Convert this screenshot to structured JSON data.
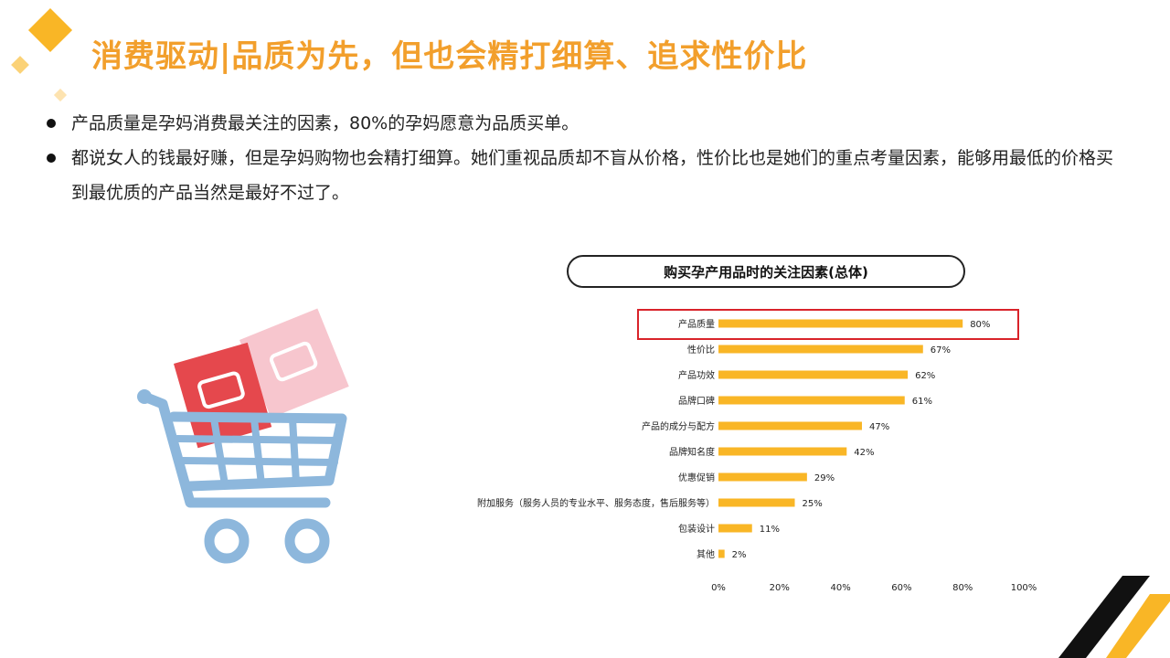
{
  "slide": {
    "title": "消费驱动|品质为先，但也会精打细算、追求性价比",
    "bullets": [
      "产品质量是孕妈消费最关注的因素，80%的孕妈愿意为品质买单。",
      "都说女人的钱最好赚，但是孕妈购物也会精打细算。她们重视品质却不盲从价格，性价比也是她们的重点考量因素，能够用最低的价格买到最优质的产品当然是最好不过了。"
    ]
  },
  "colors": {
    "accent": "#f29f2c",
    "bar": "#f9b626",
    "highlight": "#d9232a",
    "cart": "#8db7dc"
  },
  "chart_data": {
    "type": "bar",
    "orientation": "horizontal",
    "title": "购买孕产用品时的关注因素(总体)",
    "categories": [
      "产品质量",
      "性价比",
      "产品功效",
      "品牌口碑",
      "产品的成分与配方",
      "品牌知名度",
      "优惠促销",
      "附加服务（服务人员的专业水平、服务态度，售后服务等）",
      "包装设计",
      "其他"
    ],
    "values": [
      80,
      67,
      62,
      61,
      47,
      42,
      29,
      25,
      11,
      2
    ],
    "value_labels": [
      "80%",
      "67%",
      "62%",
      "61%",
      "47%",
      "42%",
      "29%",
      "25%",
      "11%",
      "2%"
    ],
    "xlim": [
      0,
      100
    ],
    "x_ticks": [
      "0%",
      "20%",
      "40%",
      "60%",
      "80%",
      "100%"
    ],
    "highlighted_category": "产品质量",
    "grid": false
  }
}
